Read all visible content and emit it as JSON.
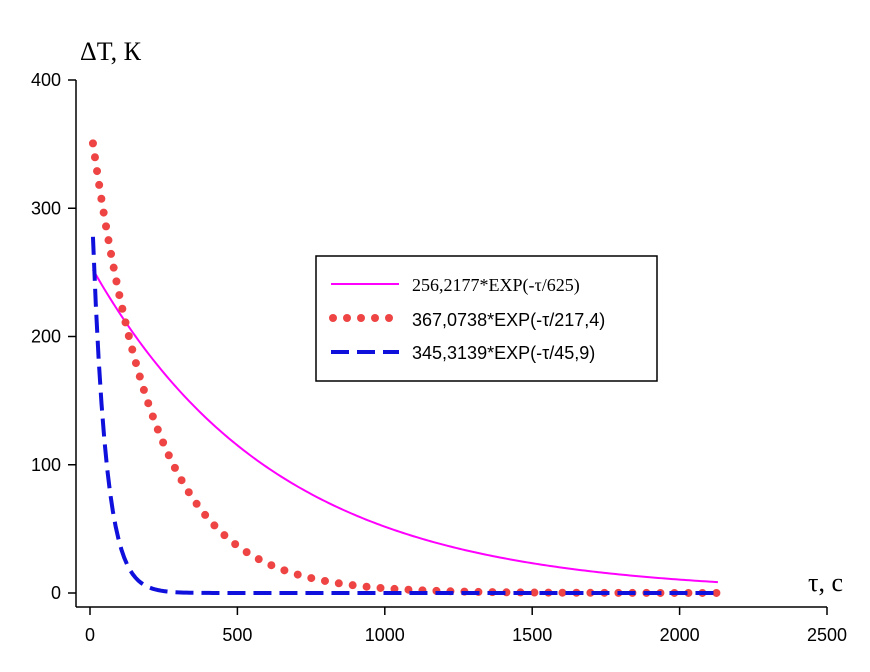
{
  "chart_data": {
    "type": "line",
    "xlabel": "τ, с",
    "ylabel": "ΔT, К",
    "xlim": [
      0,
      2500
    ],
    "ylim": [
      0,
      400
    ],
    "xticks": [
      0,
      500,
      1000,
      1500,
      2000,
      2500
    ],
    "yticks": [
      0,
      100,
      200,
      300,
      400
    ],
    "xtick_labels": [
      "0",
      "500",
      "1000",
      "1500",
      "2000",
      "2500"
    ],
    "ytick_labels": [
      "0",
      "100",
      "200",
      "300",
      "400"
    ],
    "grid": false,
    "legend_position": "center-right",
    "series": [
      {
        "name": "256,2177*EXP(-τ/625)",
        "style": "solid",
        "color": "#ff00ff",
        "amplitude": 256.2177,
        "tau": 625,
        "x_range": [
          10,
          2130
        ],
        "points": [
          [
            10,
            252.1
          ],
          [
            100,
            218.5
          ],
          [
            200,
            186.0
          ],
          [
            300,
            158.8
          ],
          [
            400,
            135.5
          ],
          [
            500,
            115.2
          ],
          [
            600,
            98.2
          ],
          [
            700,
            83.8
          ],
          [
            800,
            71.4
          ],
          [
            900,
            60.9
          ],
          [
            1000,
            51.9
          ],
          [
            1200,
            37.8
          ],
          [
            1400,
            27.4
          ],
          [
            1600,
            19.9
          ],
          [
            1800,
            14.4
          ],
          [
            2000,
            10.5
          ],
          [
            2130,
            8.5
          ]
        ]
      },
      {
        "name": "367,0738*EXP(-τ/217,4)",
        "style": "dotted",
        "color": "#ee4444",
        "amplitude": 367.0738,
        "tau": 217.4,
        "x_range": [
          10,
          2130
        ],
        "points": [
          [
            10,
            350.5
          ],
          [
            50,
            291.6
          ],
          [
            100,
            232.0
          ],
          [
            150,
            184.6
          ],
          [
            200,
            146.9
          ],
          [
            300,
            93.0
          ],
          [
            400,
            58.9
          ],
          [
            500,
            37.3
          ],
          [
            600,
            23.6
          ],
          [
            800,
            9.2
          ],
          [
            1000,
            3.7
          ],
          [
            1500,
            0.4
          ],
          [
            2000,
            0.0
          ],
          [
            2130,
            0.0
          ]
        ]
      },
      {
        "name": "345,3139*EXP(-τ/45,9)",
        "style": "dashed",
        "color": "#1010dd",
        "amplitude": 345.3139,
        "tau": 45.9,
        "x_range": [
          10,
          2130
        ],
        "points": [
          [
            10,
            278.0
          ],
          [
            25,
            200.4
          ],
          [
            50,
            116.3
          ],
          [
            75,
            67.5
          ],
          [
            100,
            39.2
          ],
          [
            150,
            13.2
          ],
          [
            200,
            4.4
          ],
          [
            300,
            0.5
          ],
          [
            500,
            0.0
          ],
          [
            1000,
            0.0
          ],
          [
            2130,
            0.0
          ]
        ]
      }
    ]
  }
}
